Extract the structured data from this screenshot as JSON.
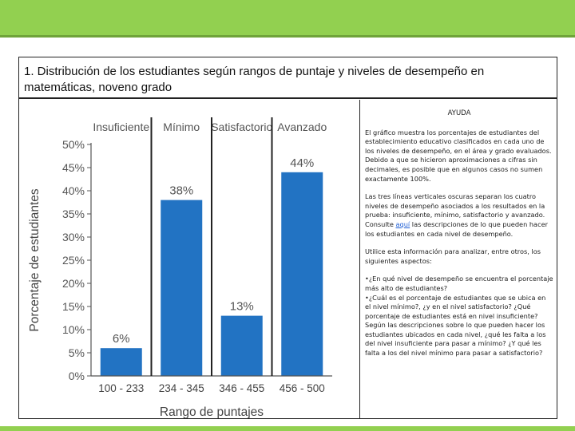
{
  "header": {
    "title": "1. Distribución de los estudiantes según rangos de puntaje y niveles de desempeño en matemáticas, noveno grado"
  },
  "chart_data": {
    "type": "bar",
    "title": "",
    "xlabel": "Rango de puntajes",
    "ylabel": "Porcentaje de estudiantes",
    "categories": [
      "100 - 233",
      "234 - 345",
      "346 - 455",
      "456 - 500"
    ],
    "levels": [
      "Insuficiente",
      "Mínimo",
      "Satisfactorio",
      "Avanzado"
    ],
    "values": [
      6,
      38,
      13,
      44
    ],
    "value_labels": [
      "6%",
      "38%",
      "13%",
      "44%"
    ],
    "ylim": [
      0,
      50
    ],
    "yticks": [
      "0%",
      "5%",
      "10%",
      "15%",
      "20%",
      "25%",
      "30%",
      "35%",
      "40%",
      "45%",
      "50%"
    ],
    "bar_color": "#2273c3",
    "grid": false
  },
  "help": {
    "title": "AYUDA",
    "p1": "El gráfico muestra los porcentajes de estudiantes del establecimiento educativo clasificados en cada uno de los niveles de desempeño, en el área y grado evaluados. Debido a que se hicieron aproximaciones a cifras sin decimales, es posible que en algunos casos no sumen exactamente 100%.",
    "p2_before": "Las tres líneas verticales oscuras separan los cuatro niveles de desempeño asociados a los resultados en la prueba: insuficiente, mínimo, satisfactorio y avanzado. Consulte ",
    "p2_link": "aquí",
    "p2_after": " las descripciones de lo que pueden hacer los estudiantes en cada nivel de desempeño.",
    "p3": "Utilice esta información para analizar, entre otros, los siguientes aspectos:",
    "q1": "•¿En qué nivel de desempeño se encuentra el porcentaje más alto de estudiantes?",
    "q2": "•¿Cuál es el porcentaje de estudiantes que se ubica en el nivel mínimo?, ¿y en el nivel satisfactorio? ¿Qué porcentaje de estudiantes está en nivel insuficiente? Según las descripciones sobre lo que pueden hacer los estudiantes ubicados en cada nivel, ¿qué les falta a los del nivel insuficiente para pasar a mínimo? ¿Y qué les falta a los del nivel mínimo para pasar a satisfactorio?"
  }
}
